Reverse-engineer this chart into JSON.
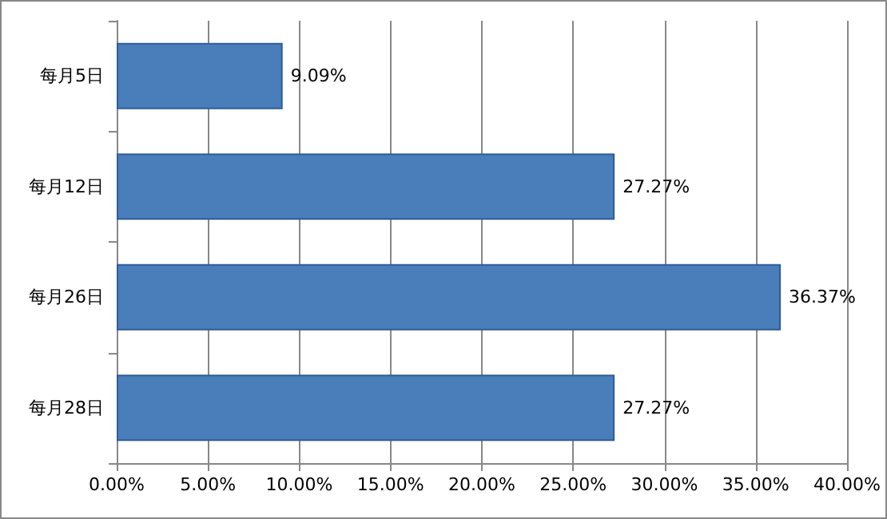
{
  "chart_data": {
    "type": "bar",
    "orientation": "horizontal",
    "categories": [
      "每月5日",
      "每月12日",
      "每月26日",
      "每月28日"
    ],
    "values": [
      9.09,
      27.27,
      36.37,
      27.27
    ],
    "value_labels": [
      "9.09%",
      "27.27%",
      "36.37%",
      "27.27%"
    ],
    "color": "#4a7ebb",
    "xlim": [
      0,
      40
    ],
    "xticks": [
      {
        "value": 0,
        "label": "0.00%"
      },
      {
        "value": 5,
        "label": "5.00%"
      },
      {
        "value": 10,
        "label": "10.00%"
      },
      {
        "value": 15,
        "label": "15.00%"
      },
      {
        "value": 20,
        "label": "20.00%"
      },
      {
        "value": 25,
        "label": "25.00%"
      },
      {
        "value": 30,
        "label": "30.00%"
      },
      {
        "value": 35,
        "label": "35.00%"
      },
      {
        "value": 40,
        "label": "40.00%"
      }
    ],
    "grid": "x"
  }
}
